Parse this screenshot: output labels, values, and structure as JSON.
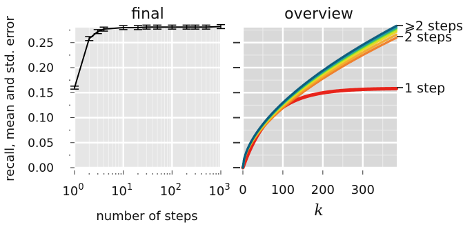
{
  "chart_data": [
    {
      "panel": "left",
      "type": "line",
      "title": "final",
      "xlabel": "number of steps",
      "ylabel": "recall, mean and std. error",
      "xscale": "log",
      "xlim": [
        1,
        1000
      ],
      "ylim": [
        0,
        0.28
      ],
      "x_tick_labels": [
        {
          "value": 1,
          "base": "10",
          "exp": "0"
        },
        {
          "value": 10,
          "base": "10",
          "exp": "1"
        },
        {
          "value": 100,
          "base": "10",
          "exp": "2"
        },
        {
          "value": 1000,
          "base": "10",
          "exp": "3"
        }
      ],
      "y_ticks": [
        0.0,
        0.05,
        0.1,
        0.15,
        0.2,
        0.25
      ],
      "y_tick_labels": [
        "0.00",
        "0.05",
        "0.10",
        "0.15",
        "0.20",
        "0.25"
      ],
      "x": [
        1,
        2,
        3,
        4,
        10,
        20,
        30,
        50,
        100,
        200,
        300,
        500,
        1000
      ],
      "y": [
        0.16,
        0.258,
        0.272,
        0.277,
        0.28,
        0.28,
        0.281,
        0.281,
        0.281,
        0.281,
        0.281,
        0.281,
        0.282
      ],
      "err": [
        0.003,
        0.004,
        0.004,
        0.004,
        0.004,
        0.004,
        0.004,
        0.004,
        0.004,
        0.004,
        0.004,
        0.004,
        0.004
      ],
      "grid": true,
      "background": "#e6e6e6"
    },
    {
      "panel": "right",
      "type": "line",
      "title": "overview",
      "xlabel": "k",
      "xlim": [
        0,
        385
      ],
      "ylim": [
        0,
        0.28
      ],
      "x_ticks": [
        0,
        100,
        200,
        300
      ],
      "x_tick_labels": [
        "0",
        "100",
        "200",
        "300"
      ],
      "grid": true,
      "background": "#d9d9d9",
      "labels": [
        {
          "text": "⩾2 steps",
          "y": 0.284
        },
        {
          "text": "2 steps",
          "y": 0.262
        },
        {
          "text": "1 step",
          "y": 0.16
        }
      ],
      "series": [
        {
          "color": "#e8140a",
          "y_final": 0.158,
          "shape": 0.55
        },
        {
          "color": "#f07820",
          "y_final": 0.26,
          "shape": 0.8
        },
        {
          "color": "#f5a623",
          "y_final": 0.266,
          "shape": 0.8
        },
        {
          "color": "#f2d21e",
          "y_final": 0.272,
          "shape": 0.8
        },
        {
          "color": "#c8e61e",
          "y_final": 0.275,
          "shape": 0.8
        },
        {
          "color": "#6cd23c",
          "y_final": 0.278,
          "shape": 0.8
        },
        {
          "color": "#28b482",
          "y_final": 0.28,
          "shape": 0.8
        },
        {
          "color": "#1e8cb4",
          "y_final": 0.282,
          "shape": 0.8
        },
        {
          "color": "#0a5a7a",
          "y_final": 0.284,
          "shape": 0.8
        }
      ]
    }
  ]
}
